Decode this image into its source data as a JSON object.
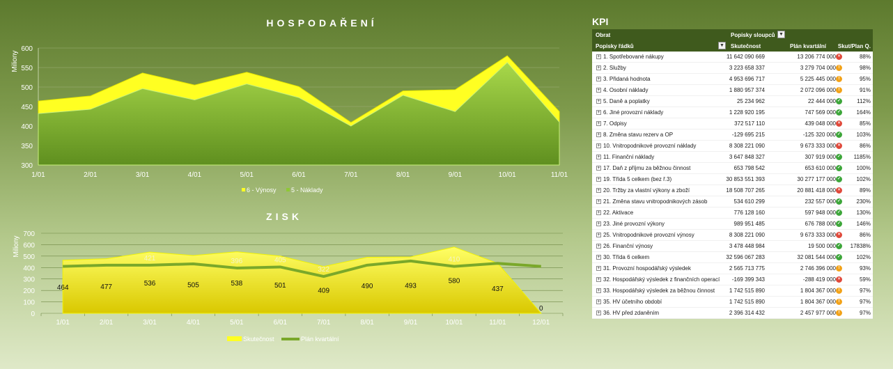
{
  "chart_data": [
    {
      "type": "area",
      "title": "HOSPODAŘENÍ",
      "ylabel": "Miliony",
      "categories": [
        "1/01",
        "2/01",
        "3/01",
        "4/01",
        "5/01",
        "6/01",
        "7/01",
        "8/01",
        "9/01",
        "10/01",
        "11/01"
      ],
      "ylim": [
        300,
        600
      ],
      "yticks": [
        "300",
        "350",
        "400",
        "450",
        "500",
        "550",
        "600"
      ],
      "series": [
        {
          "name": "6 - Výnosy",
          "color": "#ffff22",
          "values": [
            464,
            477,
            536,
            505,
            538,
            501,
            409,
            490,
            493,
            580,
            437
          ]
        },
        {
          "name": "5 - Náklady",
          "color": "#8fc835",
          "values": [
            432,
            443,
            496,
            467,
            508,
            473,
            400,
            479,
            437,
            563,
            410
          ]
        }
      ],
      "legend": "bottom",
      "grid": true
    },
    {
      "type": "area",
      "title": "ZISK",
      "ylabel": "Miliony",
      "categories": [
        "1/01",
        "2/01",
        "3/01",
        "4/01",
        "5/01",
        "6/01",
        "7/01",
        "8/01",
        "9/01",
        "10/01",
        "11/01",
        "12/01"
      ],
      "ylim": [
        0,
        700
      ],
      "yticks": [
        "0",
        "100",
        "200",
        "300",
        "400",
        "500",
        "600",
        "700"
      ],
      "series": [
        {
          "name": "Skutečnost",
          "type": "area",
          "color": "#ffff22",
          "values": [
            464,
            477,
            536,
            505,
            538,
            501,
            409,
            490,
            493,
            580,
            437,
            0
          ],
          "labels": [
            "464",
            "477",
            "536",
            "505",
            "538",
            "501",
            "409",
            "490",
            "493",
            "580",
            "437",
            "0"
          ]
        },
        {
          "name": "Plán kvartální",
          "type": "line",
          "color": "#7aa82a",
          "values": [
            410,
            421,
            421,
            432,
            396,
            405,
            322,
            421,
            457,
            410,
            437,
            410
          ],
          "labels": [
            "",
            "",
            "421",
            "",
            "396",
            "405",
            "322",
            "",
            "",
            "410",
            "",
            ""
          ]
        }
      ],
      "legend": "bottom",
      "grid": true
    }
  ],
  "kpi": {
    "title": "KPI",
    "header": {
      "obrat": "Obrat",
      "popisky_sloupcu": "Popisky sloupců",
      "popisky_radku": "Popisky řádků",
      "col_actual": "Skutečnost",
      "col_plan": "Plán kvartální",
      "col_ratio": "Skut/Plan Q."
    },
    "rows": [
      {
        "label": "1. Spotřebované nákupy",
        "actual": "11 642 090 669",
        "plan": "13 206 774 000",
        "status": "red",
        "ratio": "88%"
      },
      {
        "label": "2. Služby",
        "actual": "3 223 658 337",
        "plan": "3 279 704 000",
        "status": "orange",
        "ratio": "98%"
      },
      {
        "label": "3. Přidaná hodnota",
        "actual": "4 953 696 717",
        "plan": "5 225 445 000",
        "status": "orange",
        "ratio": "95%"
      },
      {
        "label": "4. Osobní náklady",
        "actual": "1 880 957 374",
        "plan": "2 072 096 000",
        "status": "orange",
        "ratio": "91%"
      },
      {
        "label": "5. Daně a poplatky",
        "actual": "25 234 962",
        "plan": "22 444 000",
        "status": "green",
        "ratio": "112%"
      },
      {
        "label": "6. Jiné provozní náklady",
        "actual": "1 228 920 195",
        "plan": "747 569 000",
        "status": "green",
        "ratio": "164%"
      },
      {
        "label": "7. Odpisy",
        "actual": "372 517 110",
        "plan": "439 048 000",
        "status": "red",
        "ratio": "85%"
      },
      {
        "label": "8. Změna stavu rezerv a OP",
        "actual": "-129 695 215",
        "plan": "-125 320 000",
        "status": "green",
        "ratio": "103%"
      },
      {
        "label": "10. Vnitropodnikové provozní náklady",
        "actual": "8 308 221 090",
        "plan": "9 673 333 000",
        "status": "red",
        "ratio": "86%"
      },
      {
        "label": "11. Finanční náklady",
        "actual": "3 647 848 327",
        "plan": "307 919 000",
        "status": "green",
        "ratio": "1185%"
      },
      {
        "label": "17. Daň z příjmu za běžnou činnost",
        "actual": "653 798 542",
        "plan": "653 610 000",
        "status": "green",
        "ratio": "100%"
      },
      {
        "label": "19. Třída 5 celkem (bez ř.3)",
        "actual": "30 853 551 393",
        "plan": "30 277 177 000",
        "status": "green",
        "ratio": "102%"
      },
      {
        "label": "20. Tržby za vlastní výkony a zboží",
        "actual": "18 508 707 265",
        "plan": "20 881 418 000",
        "status": "red",
        "ratio": "89%"
      },
      {
        "label": "21. Změna stavu vnitropodnikových zásob",
        "actual": "534 610 299",
        "plan": "232 557 000",
        "status": "green",
        "ratio": "230%"
      },
      {
        "label": "22. Aktivace",
        "actual": "776 128 160",
        "plan": "597 948 000",
        "status": "green",
        "ratio": "130%"
      },
      {
        "label": "23. Jiné provozní výkony",
        "actual": "989 951 485",
        "plan": "676 788 000",
        "status": "green",
        "ratio": "146%"
      },
      {
        "label": "25. Vnitropodnikové provozní výnosy",
        "actual": "8 308 221 090",
        "plan": "9 673 333 000",
        "status": "red",
        "ratio": "86%"
      },
      {
        "label": "26. Finanční výnosy",
        "actual": "3 478 448 984",
        "plan": "19 500 000",
        "status": "green",
        "ratio": "17838%"
      },
      {
        "label": "30. Třída 6 celkem",
        "actual": "32 596 067 283",
        "plan": "32 081 544 000",
        "status": "green",
        "ratio": "102%"
      },
      {
        "label": "31. Provozní hospodářský výsledek",
        "actual": "2 565 713 775",
        "plan": "2 746 396 000",
        "status": "orange",
        "ratio": "93%"
      },
      {
        "label": "32. Hospodářský výsledek z finančních operací",
        "actual": "-169 399 343",
        "plan": "-288 419 000",
        "status": "red",
        "ratio": "59%"
      },
      {
        "label": "33. Hospodářský výsledek za běžnou činnost",
        "actual": "1 742 515 890",
        "plan": "1 804 367 000",
        "status": "orange",
        "ratio": "97%"
      },
      {
        "label": "35. HV účetního období",
        "actual": "1 742 515 890",
        "plan": "1 804 367 000",
        "status": "orange",
        "ratio": "97%"
      },
      {
        "label": "36. HV před zdaněním",
        "actual": "2 396 314 432",
        "plan": "2 457 977 000",
        "status": "orange",
        "ratio": "97%"
      }
    ]
  },
  "colors": {
    "red": "#e0493b",
    "orange": "#f2a31b",
    "green": "#3da63a",
    "header": "#3f5a1d"
  }
}
